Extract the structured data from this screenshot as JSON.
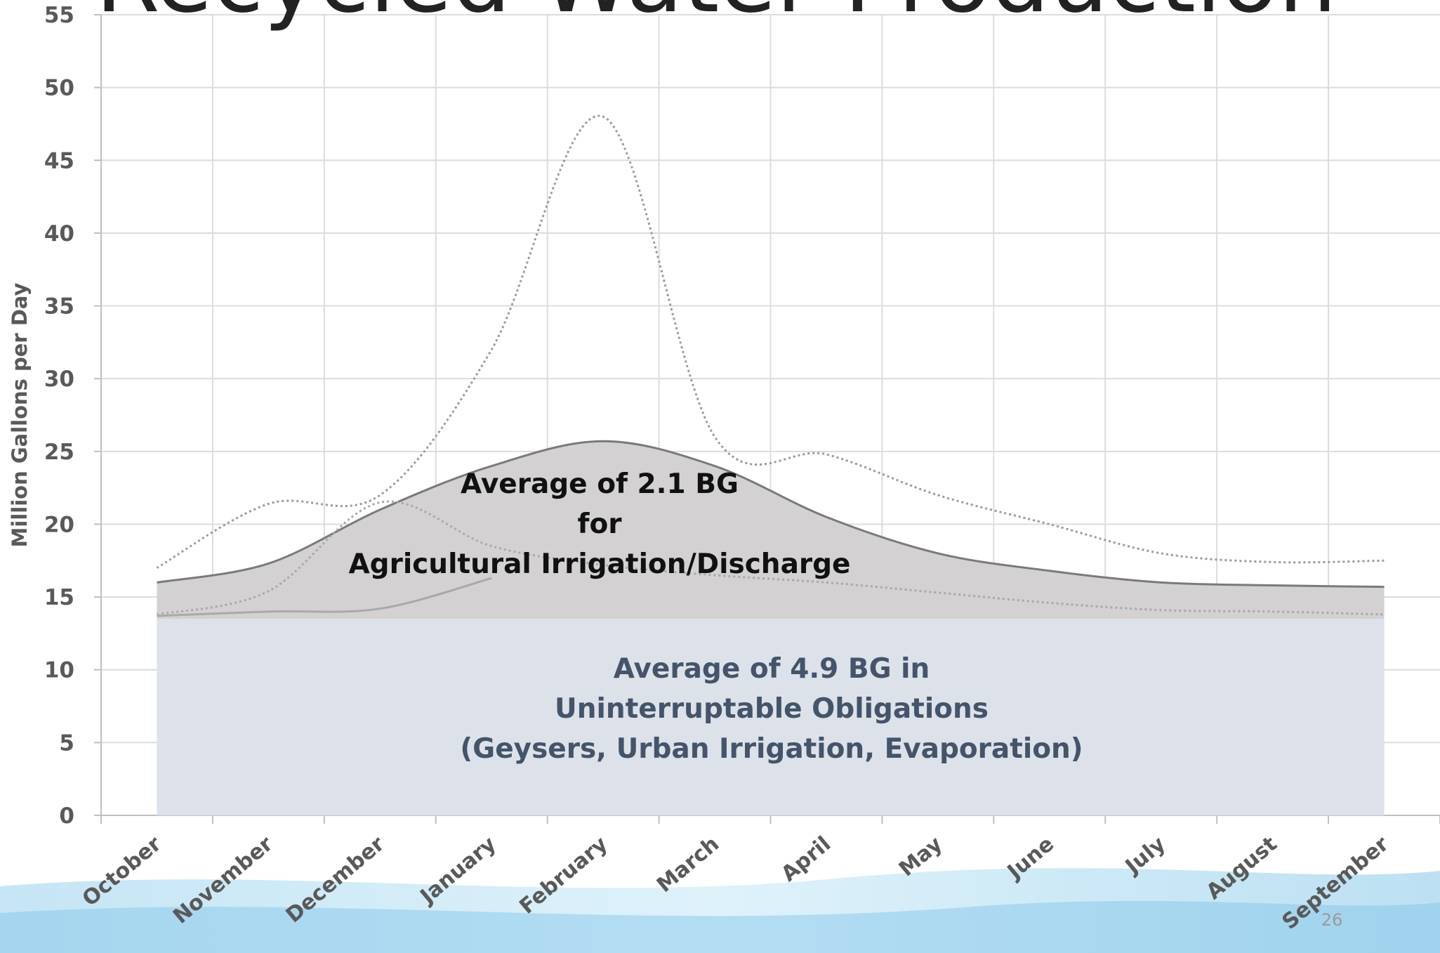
{
  "chart_data": {
    "type": "area",
    "title": "Recycled Water Production",
    "y_label": "Million Gallons per Day",
    "categories": [
      "October",
      "November",
      "December",
      "January",
      "February",
      "March",
      "April",
      "May",
      "June",
      "July",
      "August",
      "September"
    ],
    "ylim": [
      0,
      55
    ],
    "yticks": [
      0,
      5,
      10,
      15,
      20,
      25,
      30,
      35,
      40,
      45,
      50,
      55
    ],
    "grid": true,
    "series": [
      {
        "color": "#d3d1d2",
        "fill": true,
        "line_color": "#7a7a7a",
        "dash": "solid",
        "values": [
          16.0,
          17.3,
          21.0,
          24.0,
          25.7,
          24.0,
          20.5,
          18.0,
          16.8,
          16.0,
          15.8,
          15.7
        ]
      },
      {
        "color": "#dde1e9",
        "fill": true,
        "values": [
          13.5,
          13.5,
          13.5,
          13.5,
          13.5,
          13.5,
          13.5,
          13.5,
          13.5,
          13.5,
          13.5,
          13.5
        ]
      },
      {
        "color": "#a9a9a9",
        "fill": false,
        "dash": "solid",
        "values": [
          13.7,
          14.0,
          14.2,
          16.3,
          null,
          null,
          null,
          null,
          null,
          null,
          null,
          null
        ]
      },
      {
        "color": "#9a9a9a",
        "fill": false,
        "dash": "dotted",
        "values": [
          17.0,
          21.4,
          22.0,
          32.0,
          48.0,
          26.0,
          24.8,
          22.0,
          20.0,
          18.0,
          17.4,
          17.5
        ]
      },
      {
        "color": "#a9a9a9",
        "fill": false,
        "dash": "dotted",
        "values": [
          13.8,
          15.4,
          21.5,
          18.5,
          17.2,
          16.5,
          16.0,
          15.3,
          14.6,
          14.1,
          14.0,
          13.8
        ]
      }
    ],
    "annotations": [
      {
        "color": "#111111",
        "lines": [
          "Average of 2.1 BG",
          "for",
          "Agricultural Irrigation/Discharge"
        ]
      },
      {
        "color": "#44546a",
        "lines": [
          "Average of 4.9 BG in",
          "Uninterruptable Obligations",
          "(Geysers, Urban Irrigation, Evaporation)"
        ]
      }
    ],
    "page_number": "26"
  }
}
